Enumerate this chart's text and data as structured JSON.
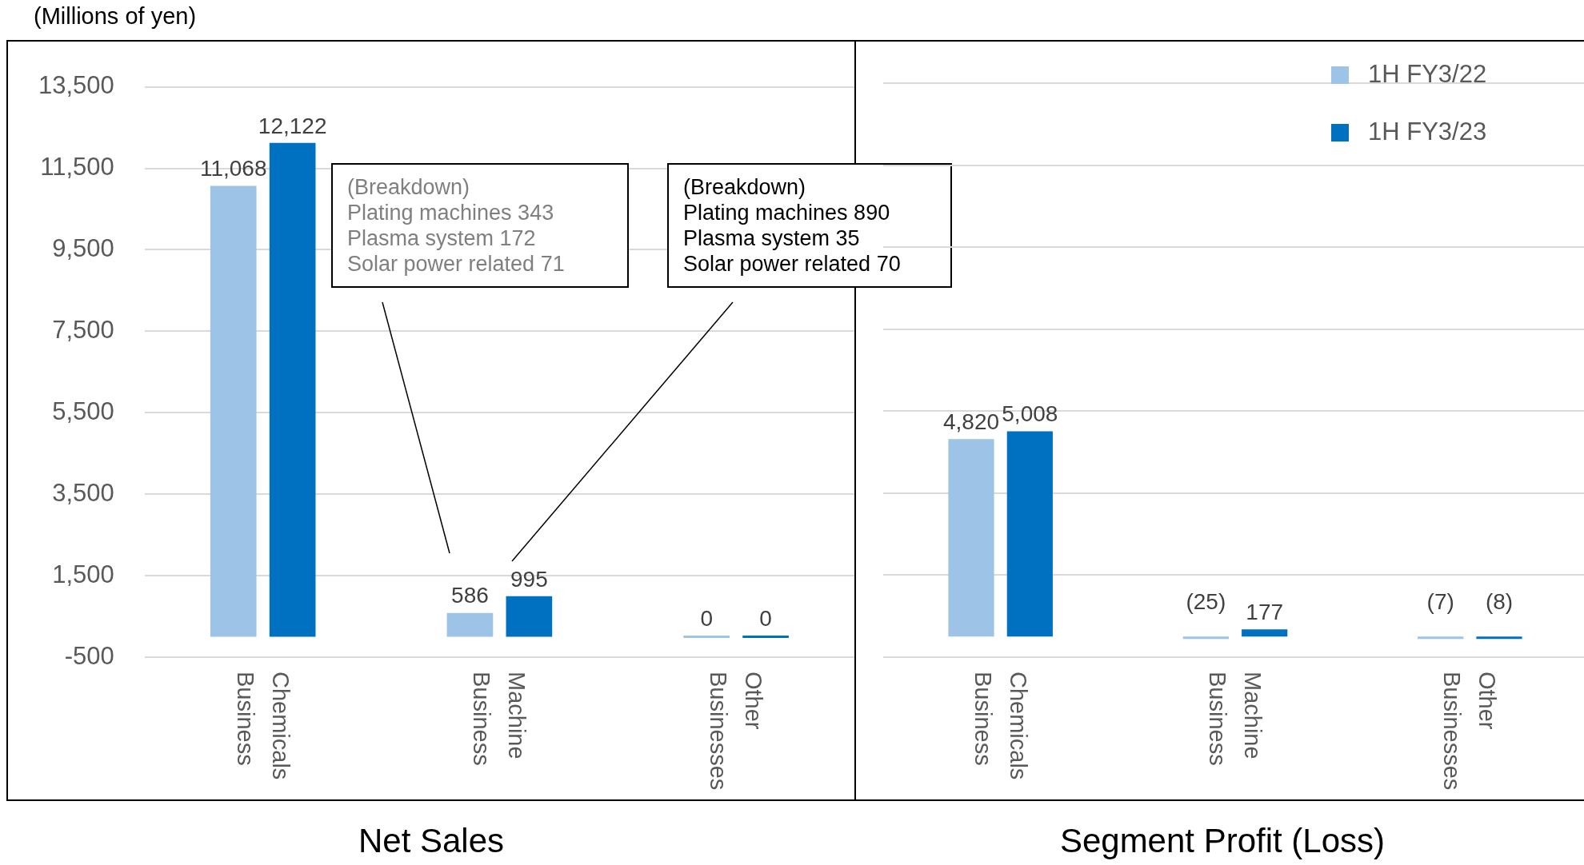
{
  "chart_data": [
    {
      "type": "bar",
      "title": "Net Sales",
      "ylabel": "(Millions of yen)",
      "categories": [
        "Chemicals Business",
        "Machine Business",
        "Other Businesses"
      ],
      "series": [
        {
          "color": "#9dc3e6",
          "values": [
            11068,
            586,
            0
          ],
          "value_labels": [
            "11,068",
            "586",
            "0"
          ]
        },
        {
          "color": "#0070c0",
          "values": [
            12122,
            995,
            0
          ],
          "value_labels": [
            "12,122",
            "995",
            "0"
          ]
        }
      ],
      "ylim": [
        -500,
        13500
      ],
      "yticks": [
        {
          "value": -500,
          "label": "-500"
        },
        {
          "value": 1500,
          "label": "1,500"
        },
        {
          "value": 3500,
          "label": "3,500"
        },
        {
          "value": 5500,
          "label": "5,500"
        },
        {
          "value": 7500,
          "label": "7,500"
        },
        {
          "value": 9500,
          "label": "9,500"
        },
        {
          "value": 11500,
          "label": "11,500"
        },
        {
          "value": 13500,
          "label": "13,500"
        }
      ],
      "grid": "y",
      "legend": false,
      "annotations": [
        "(Breakdown)\nPlating machines 343\nPlasma system 172\nSolar power related 71",
        "(Breakdown)\nPlating machines 890\nPlasma system 35\nSolar power related 70"
      ]
    },
    {
      "type": "bar",
      "title": "Segment Profit (Loss)",
      "categories": [
        "Chemicals Business",
        "Machine Business",
        "Other Businesses"
      ],
      "series": [
        {
          "name": "1H FY3/22",
          "color": "#9dc3e6",
          "values": [
            4820,
            -25,
            -7
          ],
          "value_labels": [
            "4,820",
            "(25)",
            "(7)"
          ]
        },
        {
          "name": "1H FY3/23",
          "color": "#0070c0",
          "values": [
            5008,
            177,
            -8
          ],
          "value_labels": [
            "5,008",
            "177",
            "(8)"
          ]
        }
      ],
      "ylim": [
        -500,
        13500
      ],
      "yticks": [
        {
          "value": -500,
          "label": null
        },
        {
          "value": 1500,
          "label": null
        },
        {
          "value": 3500,
          "label": null
        },
        {
          "value": 5500,
          "label": null
        },
        {
          "value": 7500,
          "label": null
        },
        {
          "value": 9500,
          "label": null
        },
        {
          "value": 11500,
          "label": null
        },
        {
          "value": 13500,
          "label": null
        }
      ],
      "tick_labels": "x",
      "grid": "y",
      "legend": "top right"
    }
  ]
}
